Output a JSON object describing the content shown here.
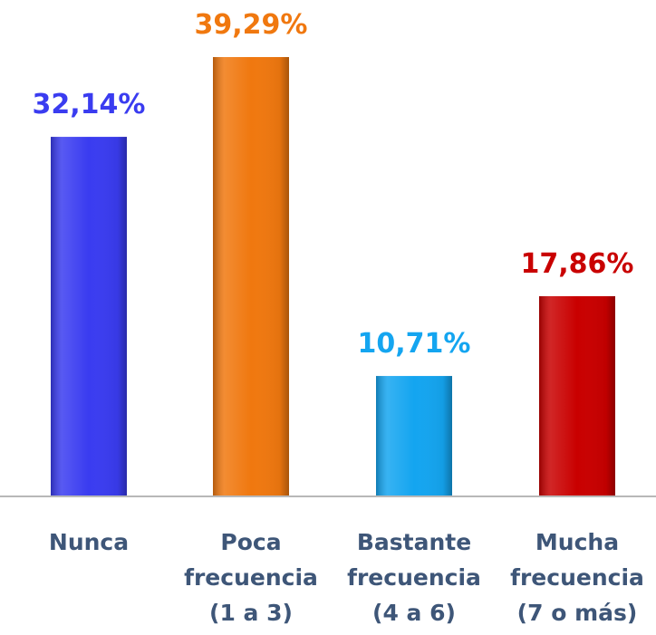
{
  "chart_data": {
    "type": "bar",
    "categories": [
      "Nunca",
      "Poca\nfrecuencia\n(1 a 3)",
      "Bastante\nfrecuencia\n(4 a 6)",
      "Mucha\nfrecuencia\n(7 o más)"
    ],
    "values": [
      32.14,
      39.29,
      10.71,
      17.86
    ],
    "value_labels": [
      "32,14%",
      "39,29%",
      "10,71%",
      "17,86%"
    ],
    "colors": [
      "#3a3cf0",
      "#f0780f",
      "#14a5f0",
      "#c90000"
    ]
  }
}
